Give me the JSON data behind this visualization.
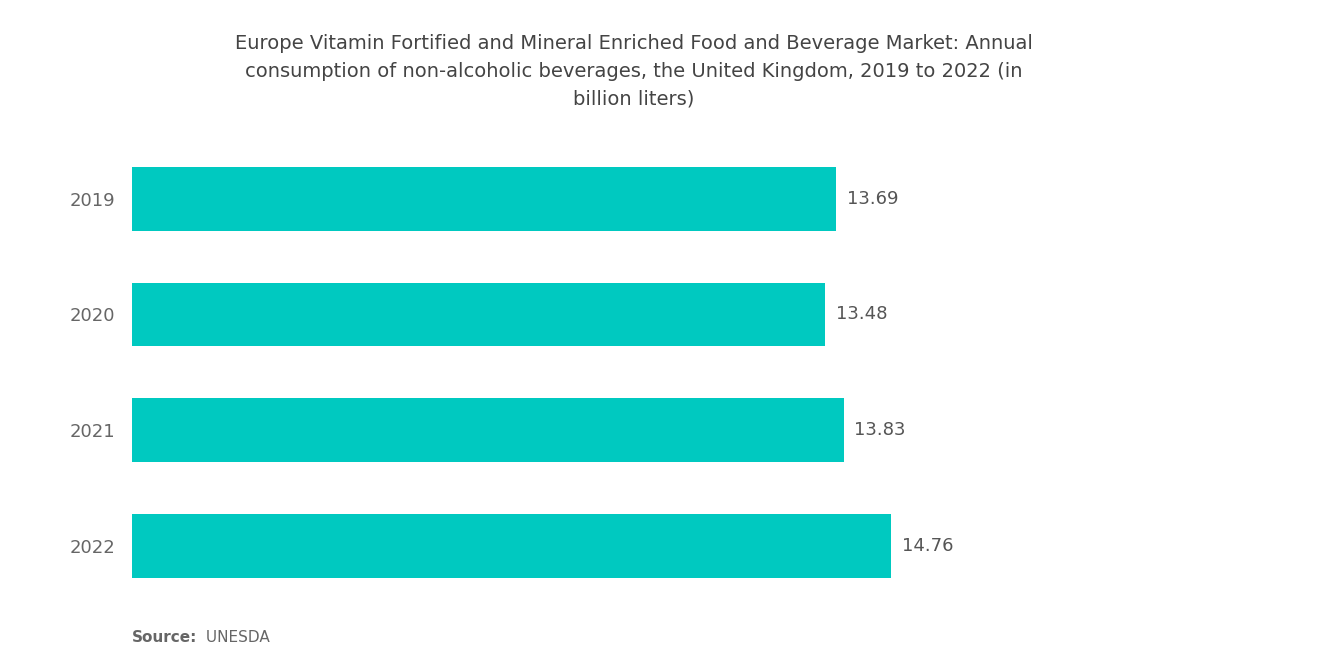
{
  "title": "Europe Vitamin Fortified and Mineral Enriched Food and Beverage Market: Annual\nconsumption of non-alcoholic beverages, the United Kingdom, 2019 to 2022 (in\nbillion liters)",
  "categories": [
    "2019",
    "2020",
    "2021",
    "2022"
  ],
  "values": [
    13.69,
    13.48,
    13.83,
    14.76
  ],
  "bar_color": "#00C9C0",
  "value_color": "#555555",
  "label_color": "#666666",
  "title_color": "#444444",
  "background_color": "#ffffff",
  "source_bold": "Source:",
  "source_normal": " UNESDA",
  "xlim": [
    0,
    19.5
  ],
  "bar_height": 0.55,
  "title_fontsize": 14,
  "label_fontsize": 13,
  "value_fontsize": 13
}
